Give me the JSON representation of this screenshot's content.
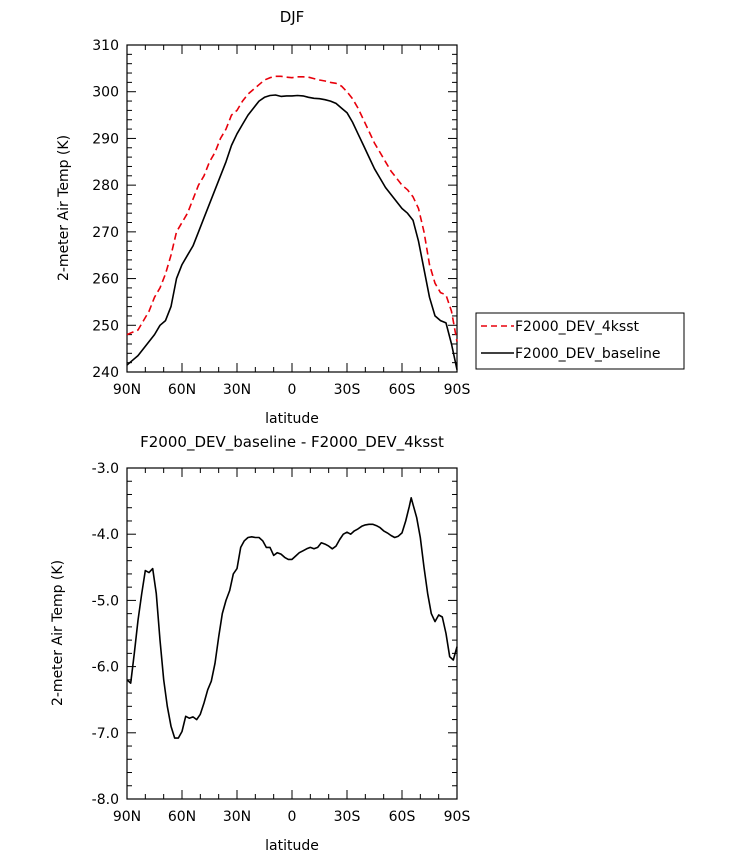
{
  "chart_data": [
    {
      "type": "line",
      "title": "DJF",
      "xlabel": "latitude",
      "ylabel": "2-meter Air Temp (K)",
      "xlim": [
        90,
        -90
      ],
      "ylim": [
        240,
        310
      ],
      "x_ticks": [
        {
          "v": 90,
          "label": "90N"
        },
        {
          "v": 60,
          "label": "60N"
        },
        {
          "v": 30,
          "label": "30N"
        },
        {
          "v": 0,
          "label": "0"
        },
        {
          "v": -30,
          "label": "30S"
        },
        {
          "v": -60,
          "label": "60S"
        },
        {
          "v": -90,
          "label": "90S"
        }
      ],
      "y_ticks": [
        {
          "v": 240,
          "label": "240"
        },
        {
          "v": 250,
          "label": "250"
        },
        {
          "v": 260,
          "label": "260"
        },
        {
          "v": 270,
          "label": "270"
        },
        {
          "v": 280,
          "label": "280"
        },
        {
          "v": 290,
          "label": "290"
        },
        {
          "v": 300,
          "label": "300"
        },
        {
          "v": 310,
          "label": "310"
        }
      ],
      "legend": {
        "placement": "right-outside"
      },
      "series": [
        {
          "name": "F2000_DEV_4ksst",
          "color": "#e8000b",
          "dash": "dashed",
          "points": [
            [
              90,
              248
            ],
            [
              87,
              248.5
            ],
            [
              84,
              249
            ],
            [
              81,
              251
            ],
            [
              78,
              253
            ],
            [
              75,
              256
            ],
            [
              72,
              258
            ],
            [
              69,
              261
            ],
            [
              66,
              265
            ],
            [
              63,
              270
            ],
            [
              60,
              272
            ],
            [
              57,
              274
            ],
            [
              54,
              277
            ],
            [
              51,
              280
            ],
            [
              48,
              282
            ],
            [
              45,
              285
            ],
            [
              42,
              287
            ],
            [
              39,
              290
            ],
            [
              36,
              292
            ],
            [
              33,
              295
            ],
            [
              30,
              296
            ],
            [
              27,
              298
            ],
            [
              24,
              299.5
            ],
            [
              21,
              300.5
            ],
            [
              18,
              301.5
            ],
            [
              15,
              302.5
            ],
            [
              12,
              303
            ],
            [
              9,
              303.3
            ],
            [
              6,
              303.3
            ],
            [
              3,
              303.1
            ],
            [
              0,
              303
            ],
            [
              -3,
              303.2
            ],
            [
              -6,
              303.2
            ],
            [
              -9,
              303.1
            ],
            [
              -12,
              302.8
            ],
            [
              -15,
              302.5
            ],
            [
              -18,
              302.3
            ],
            [
              -21,
              302
            ],
            [
              -24,
              301.8
            ],
            [
              -27,
              301.2
            ],
            [
              -30,
              300
            ],
            [
              -33,
              298.5
            ],
            [
              -36,
              296.5
            ],
            [
              -39,
              294
            ],
            [
              -42,
              291.5
            ],
            [
              -45,
              289
            ],
            [
              -48,
              287
            ],
            [
              -51,
              285
            ],
            [
              -54,
              283
            ],
            [
              -57,
              281.5
            ],
            [
              -60,
              280
            ],
            [
              -63,
              279
            ],
            [
              -66,
              277.5
            ],
            [
              -69,
              275
            ],
            [
              -72,
              270
            ],
            [
              -75,
              263
            ],
            [
              -78,
              259
            ],
            [
              -81,
              257
            ],
            [
              -84,
              256.5
            ],
            [
              -87,
              253
            ],
            [
              -90,
              246.5
            ]
          ]
        },
        {
          "name": "F2000_DEV_baseline",
          "color": "#000000",
          "dash": "solid",
          "points": [
            [
              90,
              241.5
            ],
            [
              87,
              242.5
            ],
            [
              84,
              243.5
            ],
            [
              81,
              245
            ],
            [
              78,
              246.5
            ],
            [
              75,
              248
            ],
            [
              72,
              250
            ],
            [
              69,
              251
            ],
            [
              66,
              254
            ],
            [
              63,
              260
            ],
            [
              60,
              263
            ],
            [
              57,
              265
            ],
            [
              54,
              267
            ],
            [
              51,
              270
            ],
            [
              48,
              273
            ],
            [
              45,
              276
            ],
            [
              42,
              279
            ],
            [
              39,
              282
            ],
            [
              36,
              285
            ],
            [
              33,
              288.5
            ],
            [
              30,
              291
            ],
            [
              27,
              293
            ],
            [
              24,
              295
            ],
            [
              21,
              296.5
            ],
            [
              18,
              298
            ],
            [
              15,
              298.8
            ],
            [
              12,
              299.2
            ],
            [
              9,
              299.3
            ],
            [
              6,
              299
            ],
            [
              3,
              299.1
            ],
            [
              0,
              299.1
            ],
            [
              -3,
              299.2
            ],
            [
              -6,
              299.1
            ],
            [
              -9,
              298.8
            ],
            [
              -12,
              298.6
            ],
            [
              -15,
              298.5
            ],
            [
              -18,
              298.3
            ],
            [
              -21,
              298
            ],
            [
              -24,
              297.5
            ],
            [
              -27,
              296.5
            ],
            [
              -30,
              295.5
            ],
            [
              -33,
              293.5
            ],
            [
              -36,
              291
            ],
            [
              -39,
              288.5
            ],
            [
              -42,
              286
            ],
            [
              -45,
              283.5
            ],
            [
              -48,
              281.5
            ],
            [
              -51,
              279.5
            ],
            [
              -54,
              278
            ],
            [
              -57,
              276.5
            ],
            [
              -60,
              275
            ],
            [
              -63,
              274
            ],
            [
              -66,
              272.5
            ],
            [
              -69,
              268
            ],
            [
              -72,
              262
            ],
            [
              -75,
              256
            ],
            [
              -78,
              252
            ],
            [
              -81,
              251
            ],
            [
              -84,
              250.5
            ],
            [
              -87,
              246
            ],
            [
              -90,
              240.5
            ]
          ]
        }
      ]
    },
    {
      "type": "line",
      "title": "F2000_DEV_baseline - F2000_DEV_4ksst",
      "xlabel": "latitude",
      "ylabel": "2-meter Air Temp (K)",
      "xlim": [
        90,
        -90
      ],
      "ylim": [
        -8.0,
        -3.0
      ],
      "x_ticks": [
        {
          "v": 90,
          "label": "90N"
        },
        {
          "v": 60,
          "label": "60N"
        },
        {
          "v": 30,
          "label": "30N"
        },
        {
          "v": 0,
          "label": "0"
        },
        {
          "v": -30,
          "label": "30S"
        },
        {
          "v": -60,
          "label": "60S"
        },
        {
          "v": -90,
          "label": "90S"
        }
      ],
      "y_ticks": [
        {
          "v": -8.0,
          "label": "-8.0"
        },
        {
          "v": -7.0,
          "label": "-7.0"
        },
        {
          "v": -6.0,
          "label": "-6.0"
        },
        {
          "v": -5.0,
          "label": "-5.0"
        },
        {
          "v": -4.0,
          "label": "-4.0"
        },
        {
          "v": -3.0,
          "label": "-3.0"
        }
      ],
      "series": [
        {
          "name": "",
          "color": "#000000",
          "dash": "solid",
          "points": [
            [
              90,
              -6.2
            ],
            [
              88,
              -6.25
            ],
            [
              86,
              -5.8
            ],
            [
              84,
              -5.3
            ],
            [
              82,
              -4.9
            ],
            [
              80,
              -4.55
            ],
            [
              78,
              -4.58
            ],
            [
              76,
              -4.52
            ],
            [
              74,
              -4.9
            ],
            [
              72,
              -5.6
            ],
            [
              70,
              -6.2
            ],
            [
              68,
              -6.6
            ],
            [
              66,
              -6.9
            ],
            [
              64,
              -7.08
            ],
            [
              62,
              -7.08
            ],
            [
              60,
              -6.98
            ],
            [
              58,
              -6.75
            ],
            [
              56,
              -6.78
            ],
            [
              54,
              -6.76
            ],
            [
              52,
              -6.8
            ],
            [
              50,
              -6.72
            ],
            [
              48,
              -6.55
            ],
            [
              46,
              -6.35
            ],
            [
              44,
              -6.22
            ],
            [
              42,
              -5.95
            ],
            [
              40,
              -5.55
            ],
            [
              38,
              -5.2
            ],
            [
              36,
              -5.0
            ],
            [
              34,
              -4.85
            ],
            [
              32,
              -4.6
            ],
            [
              30,
              -4.52
            ],
            [
              28,
              -4.2
            ],
            [
              26,
              -4.1
            ],
            [
              24,
              -4.05
            ],
            [
              22,
              -4.04
            ],
            [
              20,
              -4.05
            ],
            [
              18,
              -4.05
            ],
            [
              16,
              -4.1
            ],
            [
              14,
              -4.2
            ],
            [
              12,
              -4.2
            ],
            [
              10,
              -4.32
            ],
            [
              8,
              -4.28
            ],
            [
              6,
              -4.3
            ],
            [
              4,
              -4.35
            ],
            [
              2,
              -4.38
            ],
            [
              0,
              -4.38
            ],
            [
              -2,
              -4.33
            ],
            [
              -4,
              -4.28
            ],
            [
              -6,
              -4.25
            ],
            [
              -8,
              -4.22
            ],
            [
              -10,
              -4.2
            ],
            [
              -12,
              -4.22
            ],
            [
              -14,
              -4.2
            ],
            [
              -16,
              -4.13
            ],
            [
              -18,
              -4.15
            ],
            [
              -20,
              -4.18
            ],
            [
              -22,
              -4.22
            ],
            [
              -24,
              -4.18
            ],
            [
              -26,
              -4.08
            ],
            [
              -28,
              -4.0
            ],
            [
              -30,
              -3.97
            ],
            [
              -32,
              -4.0
            ],
            [
              -34,
              -3.95
            ],
            [
              -36,
              -3.92
            ],
            [
              -38,
              -3.88
            ],
            [
              -40,
              -3.86
            ],
            [
              -42,
              -3.85
            ],
            [
              -44,
              -3.85
            ],
            [
              -46,
              -3.87
            ],
            [
              -48,
              -3.9
            ],
            [
              -50,
              -3.95
            ],
            [
              -52,
              -3.98
            ],
            [
              -54,
              -4.02
            ],
            [
              -56,
              -4.05
            ],
            [
              -58,
              -4.03
            ],
            [
              -60,
              -3.98
            ],
            [
              -62,
              -3.8
            ],
            [
              -64,
              -3.58
            ],
            [
              -65,
              -3.45
            ],
            [
              -66,
              -3.55
            ],
            [
              -68,
              -3.75
            ],
            [
              -70,
              -4.05
            ],
            [
              -72,
              -4.5
            ],
            [
              -74,
              -4.9
            ],
            [
              -76,
              -5.2
            ],
            [
              -78,
              -5.32
            ],
            [
              -80,
              -5.22
            ],
            [
              -82,
              -5.25
            ],
            [
              -84,
              -5.5
            ],
            [
              -86,
              -5.85
            ],
            [
              -88,
              -5.9
            ],
            [
              -90,
              -5.7
            ]
          ]
        }
      ]
    }
  ]
}
